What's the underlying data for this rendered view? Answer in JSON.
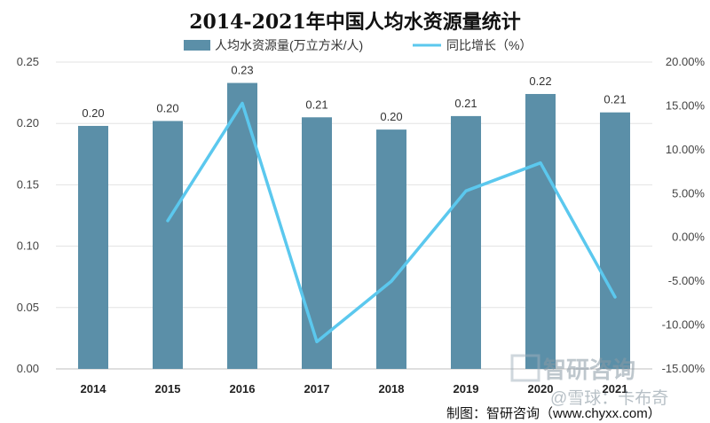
{
  "chart_data": {
    "type": "bar",
    "title": "2014-2021年中国人均水资源量统计",
    "categories": [
      "2014",
      "2015",
      "2016",
      "2017",
      "2018",
      "2019",
      "2020",
      "2021"
    ],
    "series": [
      {
        "name": "人均水资源量(万立方米/人)",
        "type": "bar",
        "axis": "left",
        "color": "#5b8fa8",
        "values": [
          0.198,
          0.202,
          0.233,
          0.205,
          0.195,
          0.206,
          0.224,
          0.209
        ],
        "labels": [
          "0.20",
          "0.20",
          "0.23",
          "0.21",
          "0.20",
          "0.21",
          "0.22",
          "0.21"
        ]
      },
      {
        "name": "同比增长（%）",
        "type": "line",
        "axis": "right",
        "color": "#5bc8ee",
        "values": [
          null,
          1.9,
          15.3,
          -11.9,
          -5.0,
          5.3,
          8.5,
          -6.8
        ]
      }
    ],
    "y_left": {
      "min": 0,
      "max": 0.25,
      "ticks": [
        "0.00",
        "0.05",
        "0.10",
        "0.15",
        "0.20",
        "0.25"
      ]
    },
    "y_right": {
      "min": -15,
      "max": 20,
      "ticks": [
        "-15.00%",
        "-10.00%",
        "-5.00%",
        "0.00%",
        "5.00%",
        "10.00%",
        "15.00%",
        "20.00%"
      ]
    },
    "grid": true,
    "legend": "top-center"
  },
  "footer": {
    "source": "制图：智研咨询（www.chyxx.com）"
  },
  "watermark": {
    "logo_text": "智研咨询",
    "sub_text": "@雪球：卡布奇"
  }
}
